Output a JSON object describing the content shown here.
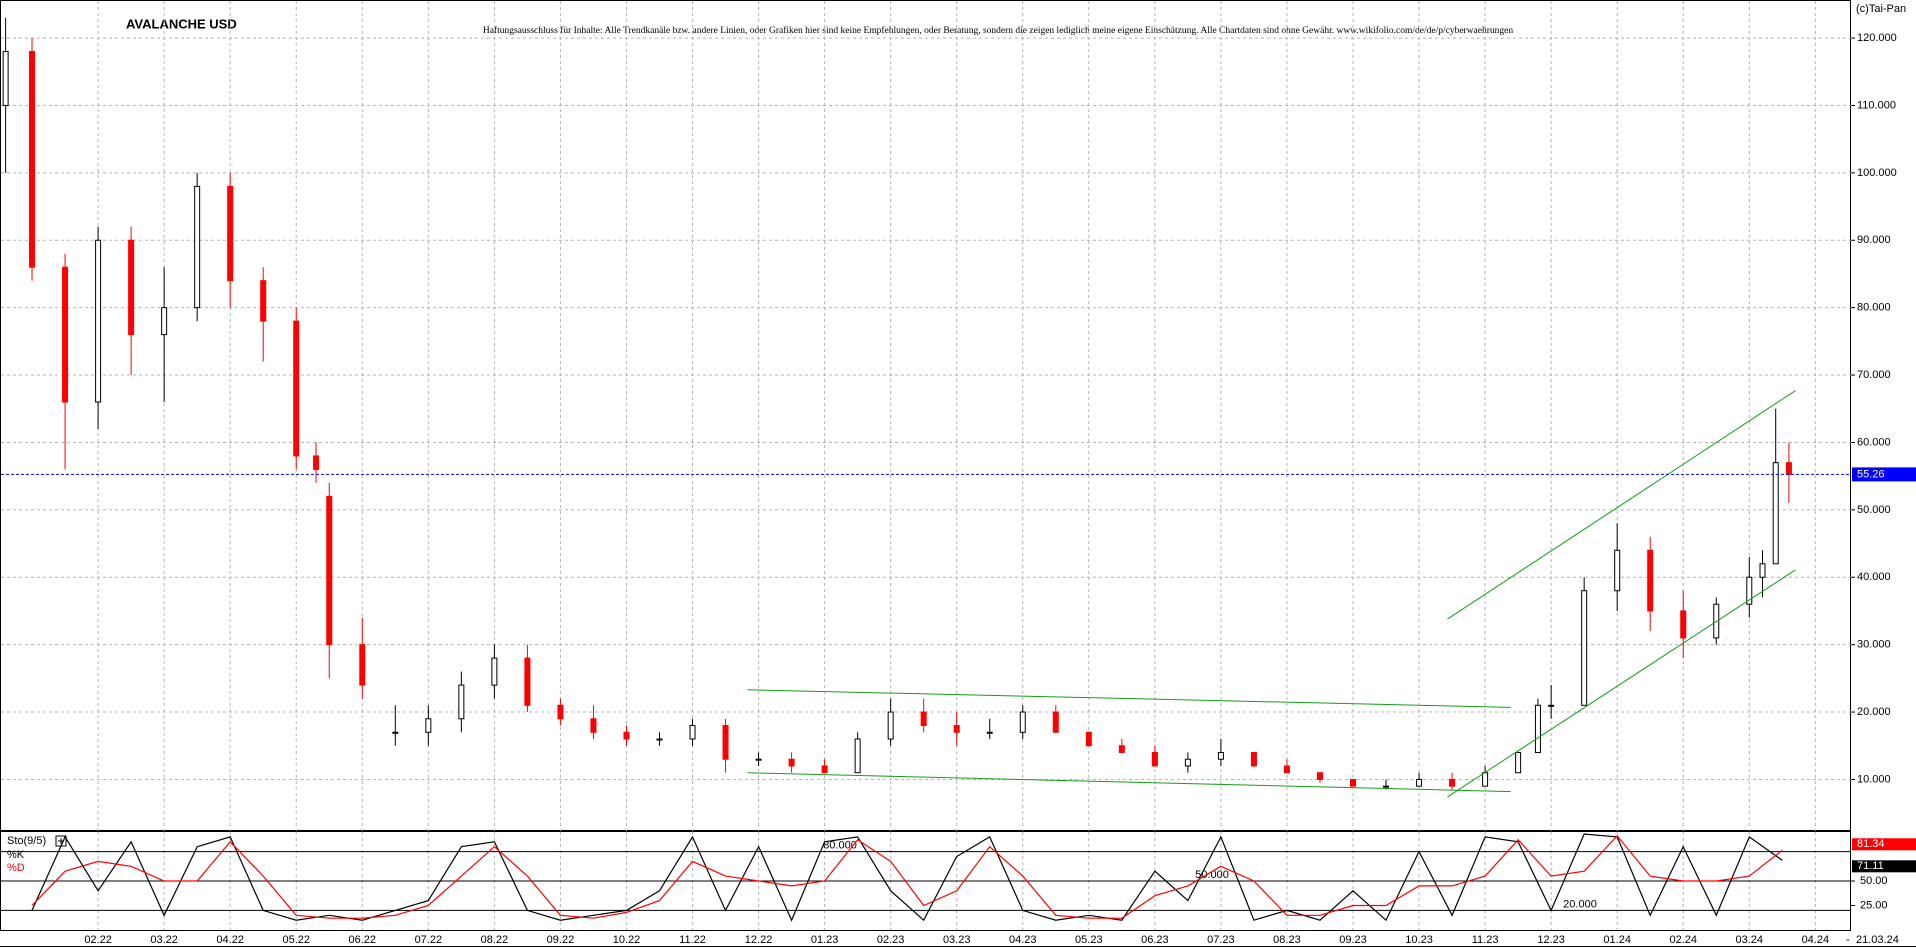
{
  "chart_data": [
    {
      "type": "candlestick",
      "title": "AVALANCHE USD",
      "subtitle": "Haftungsausschluss für Inhalte: Alle Trendkanäle bzw. andere Linien, oder Grafiken hier sind keine Empfehlungen, oder Beratung, sondern die zeigen lediglich meine eigene Einschätzung. Alle Chartdaten sind ohne Gewähr.  www.wikifolio.com/de/de/p/cyberwaehrungen",
      "source": "(c)Tai-Pan",
      "date": "21.03.24",
      "up_color": "#ffffff",
      "down_color": "#ff0000",
      "price_line_color": "#0000ff",
      "trendline_color": "#1a9a1a",
      "grid": true,
      "xlim": [
        -0.47,
        27.54
      ],
      "ylim": [
        2.35,
        125.5
      ],
      "xticks": [
        {
          "value": 1,
          "label": "02.22"
        },
        {
          "value": 2,
          "label": "03.22"
        },
        {
          "value": 3,
          "label": "04.22"
        },
        {
          "value": 4,
          "label": "05.22"
        },
        {
          "value": 5,
          "label": "06.22"
        },
        {
          "value": 6,
          "label": "07.22"
        },
        {
          "value": 7,
          "label": "08.22"
        },
        {
          "value": 8,
          "label": "09.22"
        },
        {
          "value": 9,
          "label": "10.22"
        },
        {
          "value": 10,
          "label": "11.22"
        },
        {
          "value": 11,
          "label": "12.22"
        },
        {
          "value": 12,
          "label": "01.23"
        },
        {
          "value": 13,
          "label": "02.23"
        },
        {
          "value": 14,
          "label": "03.23"
        },
        {
          "value": 15,
          "label": "04.23"
        },
        {
          "value": 16,
          "label": "05.23"
        },
        {
          "value": 17,
          "label": "06.23"
        },
        {
          "value": 18,
          "label": "07.23"
        },
        {
          "value": 19,
          "label": "08.23"
        },
        {
          "value": 20,
          "label": "09.23"
        },
        {
          "value": 21,
          "label": "10.23"
        },
        {
          "value": 22,
          "label": "11.23"
        },
        {
          "value": 23,
          "label": "12.23"
        },
        {
          "value": 24,
          "label": "01.24"
        },
        {
          "value": 25,
          "label": "02.24"
        },
        {
          "value": 26,
          "label": "03.24"
        },
        {
          "value": 27,
          "label": "04.24"
        }
      ],
      "yticks": [
        {
          "value": 10,
          "label": "10.000"
        },
        {
          "value": 20,
          "label": "20.000"
        },
        {
          "value": 30,
          "label": "30.000"
        },
        {
          "value": 40,
          "label": "40.000"
        },
        {
          "value": 50,
          "label": "50.000"
        },
        {
          "value": 60,
          "label": "60.000"
        },
        {
          "value": 70,
          "label": "70.000"
        },
        {
          "value": 80,
          "label": "80.000"
        },
        {
          "value": 90,
          "label": "90.000"
        },
        {
          "value": 100,
          "label": "100.000"
        },
        {
          "value": 110,
          "label": "110.000"
        },
        {
          "value": 120,
          "label": "120.000"
        }
      ],
      "candles": {
        "x": [
          -0.4,
          0,
          0.5,
          1,
          1.5,
          2,
          2.5,
          3,
          3.5,
          4,
          4.3,
          4.5,
          5,
          5.5,
          6,
          6.5,
          7,
          7.5,
          8,
          8.5,
          9,
          9.5,
          10,
          10.5,
          11,
          11.5,
          12,
          12.5,
          13,
          13.5,
          14,
          14.5,
          15,
          15.5,
          16,
          16.5,
          17,
          17.5,
          18,
          18.5,
          19,
          19.5,
          20,
          20.5,
          21,
          21.5,
          22,
          22.5,
          22.8,
          23,
          23.5,
          24,
          24.5,
          25,
          25.5,
          26,
          26.2,
          26.4,
          26.6
        ],
        "open": [
          110,
          118,
          86,
          66,
          90,
          76,
          80,
          98,
          84,
          78,
          58,
          52,
          30,
          17,
          17,
          19,
          24,
          28,
          21,
          19,
          17,
          16,
          16,
          18,
          13,
          13,
          12,
          11,
          16,
          20,
          18,
          17,
          17,
          20,
          17,
          15,
          14,
          12,
          13,
          14,
          12,
          11,
          10,
          9,
          9,
          10,
          9,
          11,
          14,
          21,
          21,
          38,
          44,
          35,
          31,
          36,
          40,
          42,
          57
        ],
        "high": [
          123,
          120,
          88,
          92,
          92,
          86,
          100,
          100,
          86,
          80,
          60,
          54,
          34,
          21,
          21,
          26,
          30,
          30,
          22,
          21,
          18,
          17,
          19,
          19,
          14,
          14,
          13,
          17,
          22,
          22,
          20,
          19,
          21,
          21,
          17,
          16,
          15,
          14,
          16,
          14,
          13,
          11,
          10,
          10,
          11,
          11,
          12,
          14,
          22,
          24,
          40,
          48,
          46,
          38,
          37,
          43,
          44,
          65,
          60
        ],
        "low": [
          100,
          84,
          56,
          62,
          70,
          66,
          78,
          80,
          72,
          56,
          54,
          25,
          22,
          15,
          15,
          17,
          22,
          20,
          18,
          16,
          15,
          15,
          15,
          11,
          12,
          11,
          11,
          11,
          15,
          17,
          15,
          16,
          16,
          17,
          15,
          14,
          12,
          11,
          12,
          12,
          11,
          9.5,
          9,
          8.5,
          9,
          8.5,
          9,
          11,
          14,
          19,
          21,
          35,
          32,
          28,
          30,
          34,
          37,
          42,
          51
        ],
        "close": [
          118,
          86,
          66,
          90,
          76,
          80,
          98,
          84,
          78,
          58,
          56,
          30,
          24,
          17,
          19,
          24,
          28,
          21,
          19,
          17,
          16,
          16,
          18,
          13,
          13,
          12,
          11,
          16,
          20,
          18,
          17,
          17,
          20,
          17,
          15,
          14,
          12,
          13,
          14,
          12,
          11,
          10,
          9,
          9,
          10,
          9,
          11,
          14,
          21,
          21,
          38,
          44,
          35,
          31,
          36,
          40,
          42,
          57,
          55.26
        ]
      },
      "trendlines": [
        {
          "x": [
            10.83,
            22.39
          ],
          "y": [
            23.3,
            20.7
          ]
        },
        {
          "x": [
            10.83,
            22.39
          ],
          "y": [
            11.0,
            8.2
          ]
        },
        {
          "x": [
            21.43,
            26.7
          ],
          "y": [
            7.4,
            41.1
          ]
        },
        {
          "x": [
            21.43,
            26.7
          ],
          "y": [
            33.8,
            67.7
          ]
        }
      ]
    },
    {
      "type": "line",
      "title": "Sto(9/5)",
      "ylim": [
        0,
        100
      ],
      "levels": [
        {
          "value": 80,
          "label": "80.000"
        },
        {
          "value": 50,
          "label": "50.000"
        },
        {
          "value": 20,
          "label": "20.000"
        }
      ],
      "yticks": [
        {
          "value": 50,
          "label": "50.00"
        },
        {
          "value": 25,
          "label": "25.00"
        }
      ],
      "x": [
        0,
        0.5,
        1,
        1.5,
        2,
        2.5,
        3,
        3.5,
        4,
        4.5,
        5,
        5.5,
        6,
        6.5,
        7,
        7.5,
        8,
        8.5,
        9,
        9.5,
        10,
        10.5,
        11,
        11.5,
        12,
        12.5,
        13,
        13.5,
        14,
        14.5,
        15,
        15.5,
        16,
        16.5,
        17,
        17.5,
        18,
        18.5,
        19,
        19.5,
        20,
        20.5,
        21,
        21.5,
        22,
        22.5,
        23,
        23.5,
        24,
        24.5,
        25,
        25.5,
        26,
        26.5
      ],
      "series": [
        {
          "name": "%K",
          "color": "#000000",
          "values": [
            20,
            95,
            40,
            90,
            15,
            85,
            95,
            20,
            10,
            15,
            10,
            20,
            30,
            85,
            90,
            20,
            10,
            15,
            20,
            40,
            95,
            20,
            85,
            10,
            90,
            95,
            40,
            10,
            75,
            95,
            20,
            10,
            15,
            10,
            60,
            30,
            95,
            10,
            20,
            10,
            40,
            10,
            80,
            15,
            95,
            90,
            20,
            98,
            95,
            15,
            85,
            15,
            95,
            71.11
          ]
        },
        {
          "name": "%D",
          "color": "#ff0000",
          "values": [
            25,
            60,
            70,
            65,
            50,
            50,
            90,
            55,
            15,
            12,
            12,
            15,
            25,
            55,
            85,
            55,
            15,
            12,
            18,
            30,
            70,
            55,
            50,
            45,
            50,
            92,
            70,
            25,
            40,
            85,
            55,
            15,
            12,
            12,
            35,
            45,
            65,
            50,
            15,
            15,
            25,
            25,
            45,
            45,
            55,
            92,
            55,
            60,
            96,
            55,
            50,
            50,
            55,
            81.34
          ]
        }
      ]
    }
  ]
}
